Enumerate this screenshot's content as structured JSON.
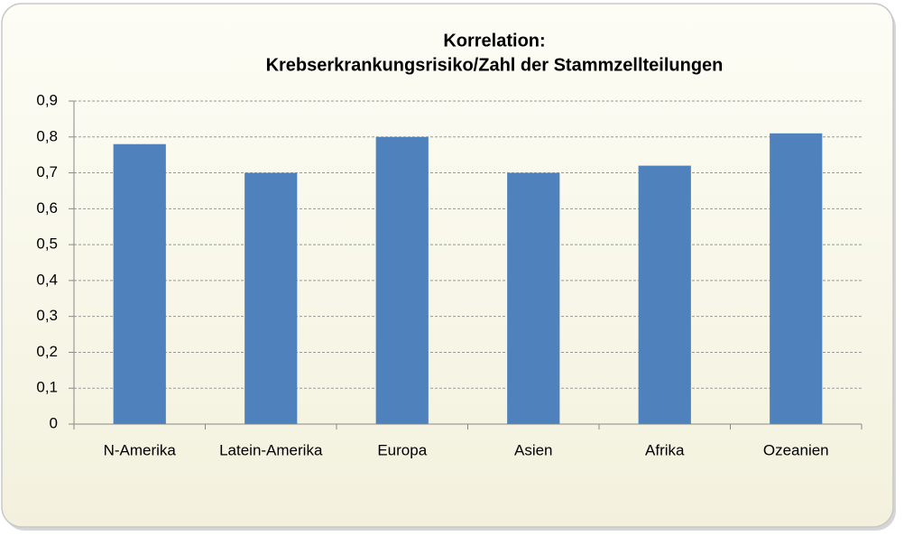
{
  "chart_data": {
    "type": "bar",
    "title": [
      "Korrelation:",
      "Krebserkrankungsrisiko/Zahl der Stammzellteilungen"
    ],
    "categories": [
      "N-Amerika",
      "Latein-Amerika",
      "Europa",
      "Asien",
      "Afrika",
      "Ozeanien"
    ],
    "values": [
      0.78,
      0.7,
      0.8,
      0.7,
      0.72,
      0.81
    ],
    "color": "#4f81bd",
    "ylim": [
      0,
      0.9
    ],
    "yticks": [
      0,
      {
        "value": 0.1,
        "label": "0,1"
      },
      {
        "value": 0.2,
        "label": "0,2"
      },
      {
        "value": 0.3,
        "label": "0,3"
      },
      {
        "value": 0.4,
        "label": "0,4"
      },
      {
        "value": 0.5,
        "label": "0,5"
      },
      {
        "value": 0.6,
        "label": "0,6"
      },
      {
        "value": 0.7,
        "label": "0,7"
      },
      {
        "value": 0.8,
        "label": "0,8"
      },
      {
        "value": 0.9,
        "label": "0,9"
      }
    ],
    "grid": true
  }
}
